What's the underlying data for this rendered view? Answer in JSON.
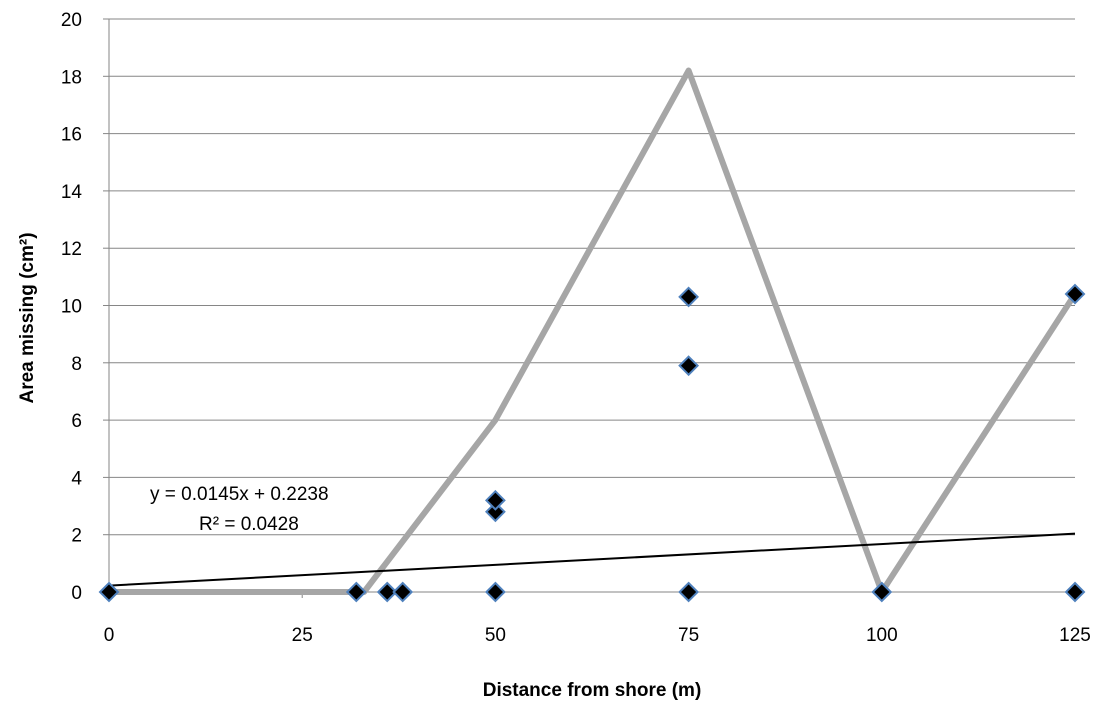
{
  "chart_data": {
    "type": "scatter",
    "xlabel": "Distance from shore (m)",
    "ylabel": "Area missing (cm²)",
    "xlim": [
      0,
      125
    ],
    "ylim": [
      0,
      20
    ],
    "x_ticks": [
      "0",
      "25",
      "50",
      "75",
      "100",
      "125"
    ],
    "y_ticks": [
      "0",
      "2",
      "4",
      "6",
      "8",
      "10",
      "12",
      "14",
      "16",
      "18",
      "20"
    ],
    "grid": "horizontal",
    "colors": {
      "points_fill": "#000000",
      "points_edge": "#4f81bd",
      "connector_line": "#a6a6a6",
      "trendline": "#000000",
      "grid": "#868686"
    },
    "series": [
      {
        "type": "scatter",
        "points": [
          [
            0,
            0
          ],
          [
            32,
            0
          ],
          [
            36,
            0
          ],
          [
            38,
            0
          ],
          [
            50,
            0
          ],
          [
            50,
            2.8
          ],
          [
            50,
            3.2
          ],
          [
            75,
            0
          ],
          [
            75,
            7.9
          ],
          [
            75,
            10.3
          ],
          [
            100,
            0
          ],
          [
            125,
            0
          ],
          [
            125,
            10.4
          ]
        ]
      },
      {
        "type": "line",
        "points": [
          [
            0,
            0
          ],
          [
            33,
            0
          ],
          [
            50,
            6.0
          ],
          [
            75,
            18.2
          ],
          [
            100,
            0
          ],
          [
            125,
            10.4
          ]
        ]
      },
      {
        "type": "trendline",
        "slope": 0.0145,
        "intercept": 0.2238
      }
    ],
    "annotations": {
      "equation": "y = 0.0145x + 0.2238",
      "r_squared": "R² = 0.0428"
    }
  }
}
